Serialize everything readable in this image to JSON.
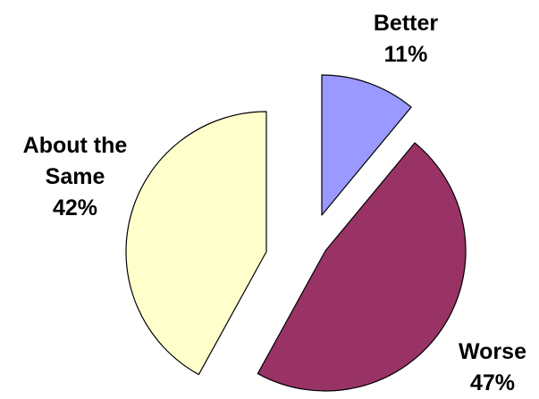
{
  "chart_data": {
    "type": "pie",
    "title": "",
    "exploded": true,
    "slices": [
      {
        "name": "Better",
        "value": 11,
        "label_lines": [
          "Better"
        ],
        "pct_label": "11%",
        "color": "#9999ff"
      },
      {
        "name": "Worse",
        "value": 47,
        "label_lines": [
          "Worse"
        ],
        "pct_label": "47%",
        "color": "#993366"
      },
      {
        "name": "About the Same",
        "value": 42,
        "label_lines": [
          "About the",
          "Same"
        ],
        "pct_label": "42%",
        "color": "#ffffcc"
      }
    ],
    "legend": "none"
  }
}
